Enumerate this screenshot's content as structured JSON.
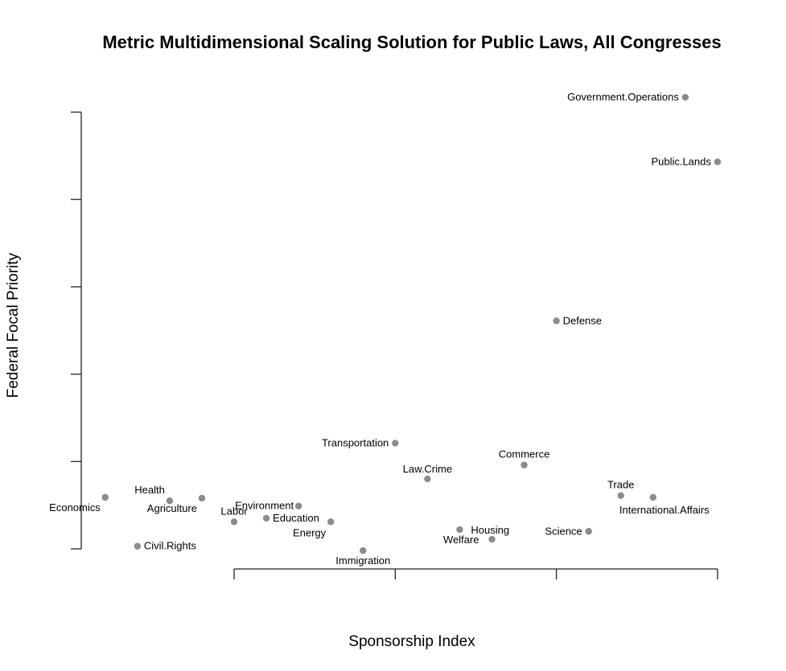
{
  "chart_data": {
    "type": "scatter",
    "title": "Metric Multidimensional Scaling Solution for Public Laws, All Congresses",
    "xlabel": "Sponsorship Index",
    "ylabel": "Federal Focal Priority",
    "xlim": [
      -0.95,
      3.05
    ],
    "ylim": [
      -0.05,
      5.55
    ],
    "x_ticks": [
      0,
      1,
      2,
      3
    ],
    "y_ticks": [
      0,
      1,
      2,
      3,
      4,
      5
    ],
    "tick_labels_shown": false,
    "grid": false,
    "legend": "none",
    "point_color": "#8c8c8c",
    "points": [
      {
        "label": "Economics",
        "x": -0.8,
        "y": 0.59
      },
      {
        "label": "Civil.Rights",
        "x": -0.6,
        "y": 0.03
      },
      {
        "label": "Health",
        "x": -0.4,
        "y": 0.55
      },
      {
        "label": "Agriculture",
        "x": -0.2,
        "y": 0.58
      },
      {
        "label": "Labor",
        "x": 0.0,
        "y": 0.31
      },
      {
        "label": "Education",
        "x": 0.2,
        "y": 0.35
      },
      {
        "label": "Environment",
        "x": 0.4,
        "y": 0.49
      },
      {
        "label": "Energy",
        "x": 0.6,
        "y": 0.31
      },
      {
        "label": "Immigration",
        "x": 0.8,
        "y": -0.02
      },
      {
        "label": "Transportation",
        "x": 1.0,
        "y": 1.21
      },
      {
        "label": "Law.Crime",
        "x": 1.2,
        "y": 0.8
      },
      {
        "label": "Housing",
        "x": 1.4,
        "y": 0.22
      },
      {
        "label": "Welfare",
        "x": 1.6,
        "y": 0.11
      },
      {
        "label": "Commerce",
        "x": 1.8,
        "y": 0.96
      },
      {
        "label": "Defense",
        "x": 2.0,
        "y": 2.61
      },
      {
        "label": "Science",
        "x": 2.2,
        "y": 0.2
      },
      {
        "label": "Trade",
        "x": 2.4,
        "y": 0.61
      },
      {
        "label": "International.Affairs",
        "x": 2.6,
        "y": 0.59
      },
      {
        "label": "Government.Operations",
        "x": 2.8,
        "y": 5.17
      },
      {
        "label": "Public.Lands",
        "x": 3.0,
        "y": 4.43
      }
    ]
  }
}
